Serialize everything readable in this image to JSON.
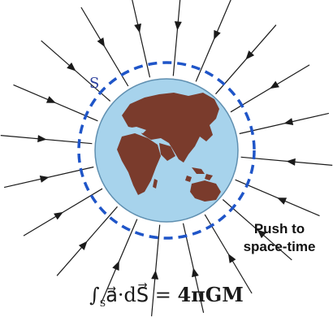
{
  "diagram": {
    "surface_label": "S",
    "callout_line1": "Push to",
    "callout_line2": "space-time",
    "equation_lhs": "∫",
    "equation_sub": "S",
    "equation_body": "a⃗·dS⃗ = ",
    "equation_rhs": "4πGM"
  },
  "colors": {
    "ocean": "#a7d3ec",
    "land": "#7a3b2c",
    "dashed_surface": "#1f55c8",
    "field_lines": "#1a1a1a"
  },
  "icons": [
    "earth-globe",
    "field-arrow"
  ]
}
